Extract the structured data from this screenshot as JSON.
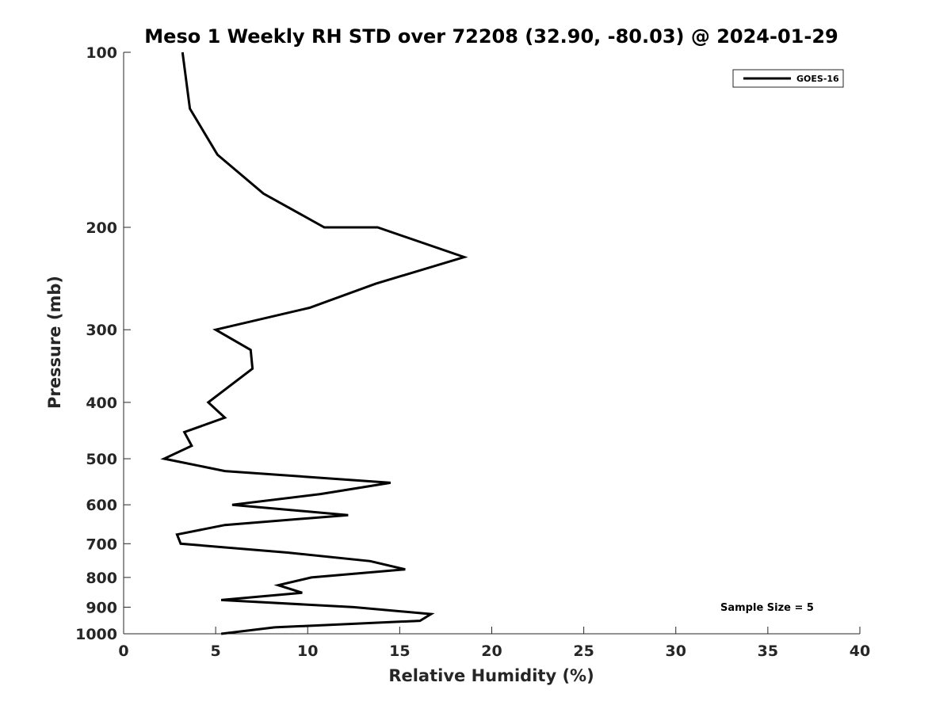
{
  "chart_data": {
    "type": "line",
    "title": "Meso 1 Weekly RH STD over 72208 (32.90, -80.03) @ 2024-01-29",
    "xlabel": "Relative Humidity (%)",
    "ylabel": "Pressure (mb)",
    "xlim": [
      0,
      40
    ],
    "ylim": [
      1000,
      100
    ],
    "y_scale": "log",
    "y_reversed": true,
    "x_ticks": [
      0,
      5,
      10,
      15,
      20,
      25,
      30,
      35,
      40
    ],
    "y_ticks": [
      100,
      200,
      300,
      400,
      500,
      600,
      700,
      800,
      900,
      1000
    ],
    "grid": false,
    "legend_position": "top-right",
    "annotation": "Sample Size = 5",
    "series": [
      {
        "name": "GOES-16",
        "color": "#000000",
        "points": [
          {
            "x": 3.2,
            "y": 100
          },
          {
            "x": 3.6,
            "y": 125
          },
          {
            "x": 5.1,
            "y": 150
          },
          {
            "x": 7.6,
            "y": 175
          },
          {
            "x": 10.9,
            "y": 200
          },
          {
            "x": 13.8,
            "y": 200
          },
          {
            "x": 18.5,
            "y": 225
          },
          {
            "x": 13.7,
            "y": 250
          },
          {
            "x": 10.1,
            "y": 275
          },
          {
            "x": 5.0,
            "y": 300
          },
          {
            "x": 6.9,
            "y": 325
          },
          {
            "x": 7.0,
            "y": 350
          },
          {
            "x": 4.6,
            "y": 400
          },
          {
            "x": 5.5,
            "y": 425
          },
          {
            "x": 3.3,
            "y": 450
          },
          {
            "x": 3.7,
            "y": 475
          },
          {
            "x": 2.2,
            "y": 500
          },
          {
            "x": 5.5,
            "y": 525
          },
          {
            "x": 14.5,
            "y": 550
          },
          {
            "x": 10.7,
            "y": 575
          },
          {
            "x": 5.9,
            "y": 600
          },
          {
            "x": 12.2,
            "y": 625
          },
          {
            "x": 5.5,
            "y": 650
          },
          {
            "x": 2.9,
            "y": 675
          },
          {
            "x": 3.1,
            "y": 700
          },
          {
            "x": 8.9,
            "y": 725
          },
          {
            "x": 13.4,
            "y": 750
          },
          {
            "x": 15.3,
            "y": 775
          },
          {
            "x": 10.2,
            "y": 800
          },
          {
            "x": 8.4,
            "y": 825
          },
          {
            "x": 9.7,
            "y": 850
          },
          {
            "x": 5.3,
            "y": 875
          },
          {
            "x": 12.5,
            "y": 900
          },
          {
            "x": 16.7,
            "y": 925
          },
          {
            "x": 16.1,
            "y": 950
          },
          {
            "x": 8.2,
            "y": 975
          },
          {
            "x": 5.3,
            "y": 1000
          }
        ]
      }
    ]
  }
}
